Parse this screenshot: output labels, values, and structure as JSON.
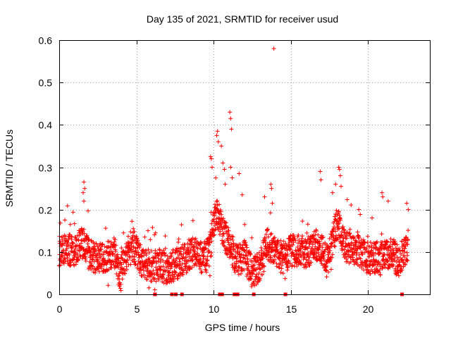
{
  "chart_data": {
    "type": "scatter",
    "title": "Day 135 of 2021, SRMTID for receiver usud",
    "xlabel": "GPS time / hours",
    "ylabel": "SRMTID / TECUs",
    "xlim": [
      0,
      24
    ],
    "ylim": [
      0,
      0.6
    ],
    "xticks": [
      0,
      5,
      10,
      15,
      20
    ],
    "xtick_labels": [
      "0",
      "5",
      "10",
      "15",
      "20"
    ],
    "yticks": [
      0,
      0.1,
      0.2,
      0.3,
      0.4,
      0.5,
      0.6
    ],
    "ytick_labels": [
      "0",
      "0.1",
      "0.2",
      "0.3",
      "0.4",
      "0.5",
      "0.6"
    ],
    "grid": true,
    "marker": "+",
    "color": "#ff0000",
    "series": [
      {
        "name": "SRMTID",
        "x_step": 0.01,
        "profile": [
          [
            0,
            0.105
          ],
          [
            1,
            0.105
          ],
          [
            1.5,
            0.12
          ],
          [
            2,
            0.09
          ],
          [
            3,
            0.085
          ],
          [
            3.6,
            0.1
          ],
          [
            3.9,
            0.04
          ],
          [
            4.3,
            0.09
          ],
          [
            4.8,
            0.115
          ],
          [
            5.3,
            0.08
          ],
          [
            6,
            0.065
          ],
          [
            6.5,
            0.07
          ],
          [
            7,
            0.06
          ],
          [
            8,
            0.08
          ],
          [
            8.6,
            0.1
          ],
          [
            9.3,
            0.085
          ],
          [
            9.7,
            0.1
          ],
          [
            10.2,
            0.2
          ],
          [
            10.6,
            0.15
          ],
          [
            11,
            0.12
          ],
          [
            11.5,
            0.08
          ],
          [
            12,
            0.09
          ],
          [
            12.5,
            0.05
          ],
          [
            13,
            0.07
          ],
          [
            13.5,
            0.12
          ],
          [
            14,
            0.1
          ],
          [
            14.5,
            0.08
          ],
          [
            15,
            0.105
          ],
          [
            16,
            0.1
          ],
          [
            16.8,
            0.12
          ],
          [
            17.4,
            0.08
          ],
          [
            18,
            0.17
          ],
          [
            18.6,
            0.11
          ],
          [
            19.5,
            0.1
          ],
          [
            20,
            0.085
          ],
          [
            21,
            0.09
          ],
          [
            21.5,
            0.1
          ],
          [
            22,
            0.075
          ],
          [
            22.6,
            0.12
          ]
        ],
        "spikes": [
          {
            "x": 1.6,
            "y": 0.265
          },
          {
            "x": 1.65,
            "y": 0.25
          },
          {
            "x": 1.55,
            "y": 0.24
          },
          {
            "x": 1.6,
            "y": 0.22
          },
          {
            "x": 9.8,
            "y": 0.325
          },
          {
            "x": 9.85,
            "y": 0.32
          },
          {
            "x": 9.9,
            "y": 0.3
          },
          {
            "x": 10.2,
            "y": 0.375
          },
          {
            "x": 10.25,
            "y": 0.385
          },
          {
            "x": 10.3,
            "y": 0.36
          },
          {
            "x": 10.5,
            "y": 0.35
          },
          {
            "x": 10.6,
            "y": 0.31
          },
          {
            "x": 10.7,
            "y": 0.295
          },
          {
            "x": 10.75,
            "y": 0.26
          },
          {
            "x": 11.05,
            "y": 0.43
          },
          {
            "x": 11.1,
            "y": 0.415
          },
          {
            "x": 11.15,
            "y": 0.39
          },
          {
            "x": 11.1,
            "y": 0.3
          },
          {
            "x": 11.2,
            "y": 0.275
          },
          {
            "x": 11.65,
            "y": 0.285
          },
          {
            "x": 11.85,
            "y": 0.235
          },
          {
            "x": 13.3,
            "y": 0.23
          },
          {
            "x": 13.7,
            "y": 0.26
          },
          {
            "x": 13.75,
            "y": 0.25
          },
          {
            "x": 13.9,
            "y": 0.58
          },
          {
            "x": 13.8,
            "y": 0.215
          },
          {
            "x": 16.9,
            "y": 0.29
          },
          {
            "x": 16.95,
            "y": 0.27
          },
          {
            "x": 17.7,
            "y": 0.24
          },
          {
            "x": 17.9,
            "y": 0.26
          },
          {
            "x": 18.1,
            "y": 0.3
          },
          {
            "x": 18.15,
            "y": 0.295
          },
          {
            "x": 18.2,
            "y": 0.28
          },
          {
            "x": 18.25,
            "y": 0.255
          },
          {
            "x": 19.4,
            "y": 0.2
          },
          {
            "x": 20.9,
            "y": 0.24
          },
          {
            "x": 20.95,
            "y": 0.23
          },
          {
            "x": 21.3,
            "y": 0.22
          },
          {
            "x": 22.5,
            "y": 0.215
          },
          {
            "x": 22.6,
            "y": 0.2
          }
        ],
        "zero_points": [
          6.2,
          7.3,
          7.55,
          7.95,
          10.4,
          10.55,
          11.35,
          11.55,
          12.6,
          14.65,
          22.2
        ]
      }
    ]
  }
}
